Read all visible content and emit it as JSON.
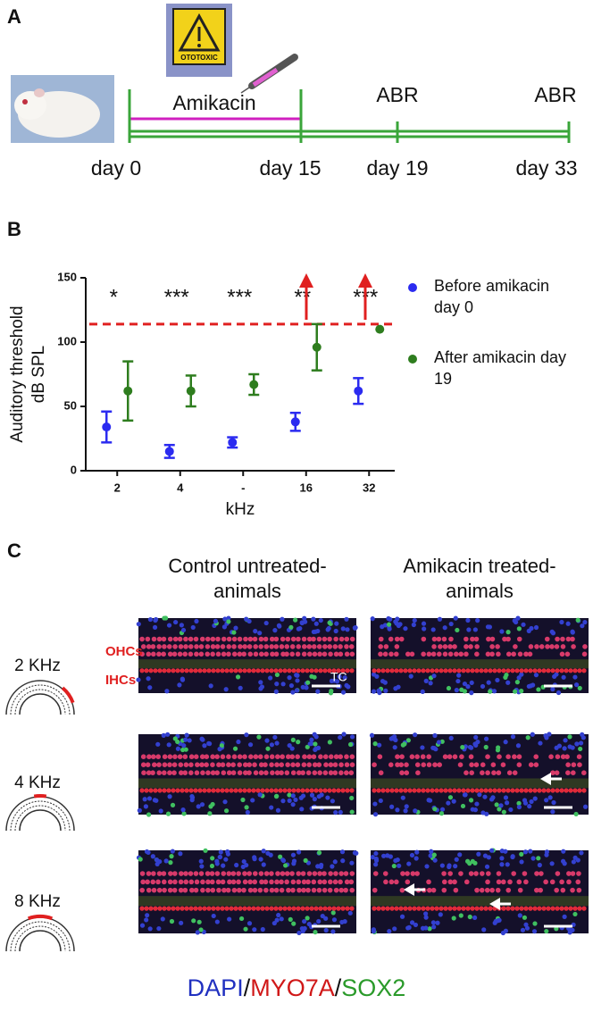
{
  "panel_a": {
    "label": "A",
    "sign_text": "OTOTOXIC",
    "drug": "Amikacin",
    "tests": [
      "ABR",
      "ABR"
    ],
    "days": [
      "day 0",
      "day 15",
      "day 19",
      "day 33"
    ]
  },
  "chart_data": {
    "type": "scatter",
    "panel_label": "B",
    "ylabel": [
      "Auditory threshold",
      "dB SPL"
    ],
    "xlabel": "kHz",
    "categories": [
      "2",
      "4",
      "-",
      "16",
      "32"
    ],
    "ylim": [
      0,
      150
    ],
    "yticks": [
      0,
      50,
      100,
      150
    ],
    "threshold": 114,
    "threshold_color": "#e02020",
    "significance": [
      "*",
      "***",
      "***",
      "**",
      "***"
    ],
    "series": [
      {
        "name": "Before amikacin day 0",
        "color": "#2b2bf0",
        "values": [
          34,
          15,
          22,
          38,
          62
        ],
        "errors": [
          12,
          5,
          4,
          7,
          10
        ]
      },
      {
        "name": "After amikacin day 19",
        "color": "#2e7d1e",
        "values": [
          62,
          62,
          67,
          96,
          110
        ],
        "errors": [
          23,
          12,
          8,
          18,
          null
        ]
      }
    ]
  },
  "panel_c": {
    "label": "C",
    "columns": [
      "Control untreated-animals",
      "Amikacin treated-animals"
    ],
    "rows": [
      "2 KHz",
      "4 KHz",
      "8 KHz"
    ],
    "cell_labels": [
      "OHCs",
      "IHCs"
    ],
    "tc": "TC",
    "stains": [
      {
        "name": "DAPI",
        "color": "#2030c0"
      },
      {
        "name": "MYO7A",
        "color": "#d01818"
      },
      {
        "name": "SOX2",
        "color": "#2a9a2a"
      }
    ],
    "separator": "/"
  }
}
